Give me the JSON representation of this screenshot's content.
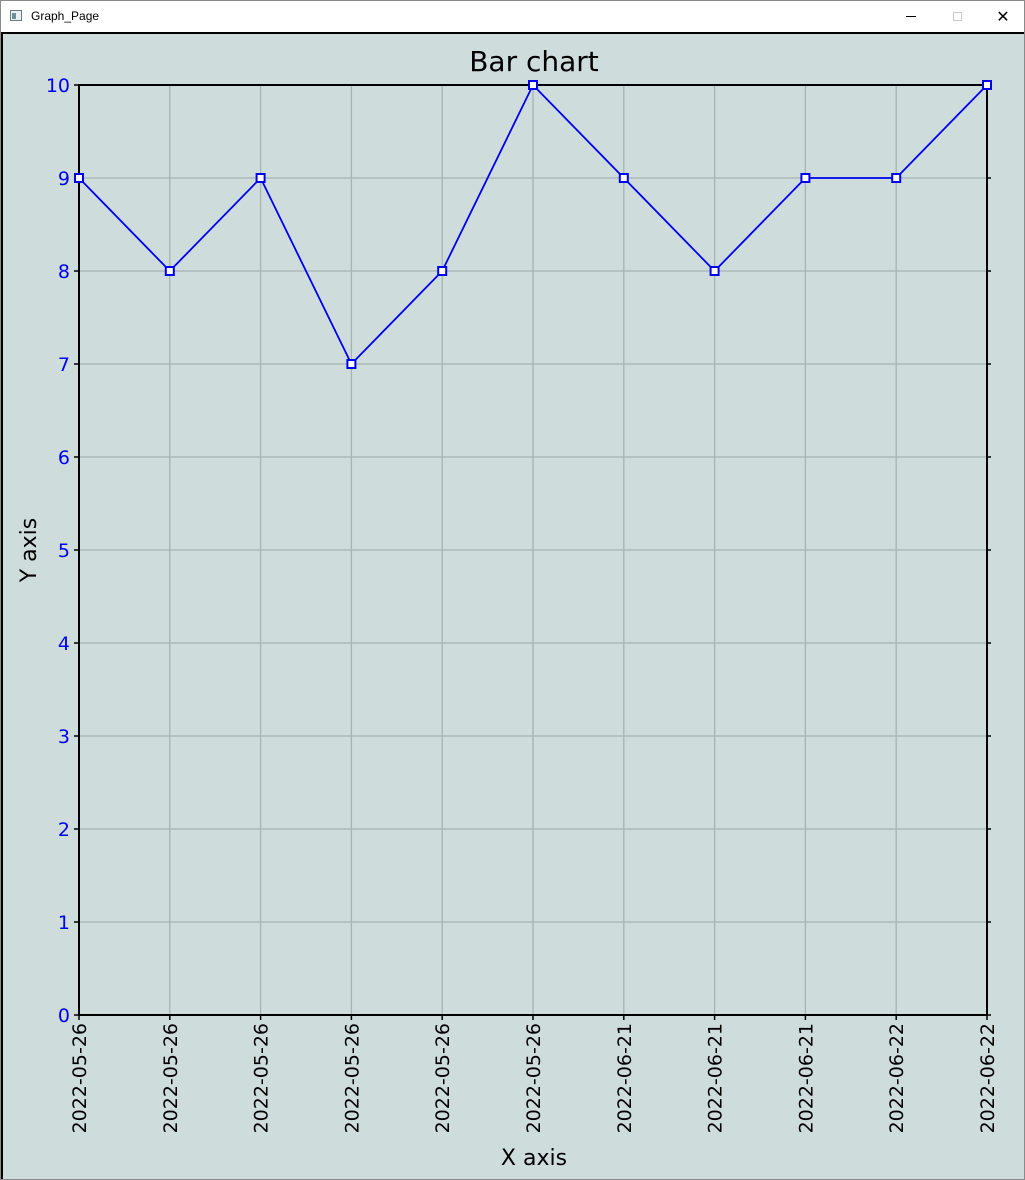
{
  "window": {
    "title": "Graph_Page",
    "minimize_label": "–",
    "maximize_label": "□",
    "close_label": "✕"
  },
  "colors": {
    "plot_background": "#cfdcdc",
    "series": "#0000ee",
    "tick_labels": "#0000ee",
    "grid": "#a6b3b3"
  },
  "chart_data": {
    "type": "line",
    "title": "Bar chart",
    "xlabel": "X axis",
    "ylabel": "Y axis",
    "categories": [
      "2022-05-26",
      "2022-05-26",
      "2022-05-26",
      "2022-05-26",
      "2022-05-26",
      "2022-05-26",
      "2022-06-21",
      "2022-06-21",
      "2022-06-21",
      "2022-06-22",
      "2022-06-22"
    ],
    "values": [
      9,
      8,
      9,
      7,
      8,
      10,
      9,
      8,
      9,
      9,
      10
    ],
    "ylim": [
      0,
      10
    ],
    "yticks": [
      0,
      1,
      2,
      3,
      4,
      5,
      6,
      7,
      8,
      9,
      10
    ],
    "grid": true,
    "marker": "square"
  }
}
